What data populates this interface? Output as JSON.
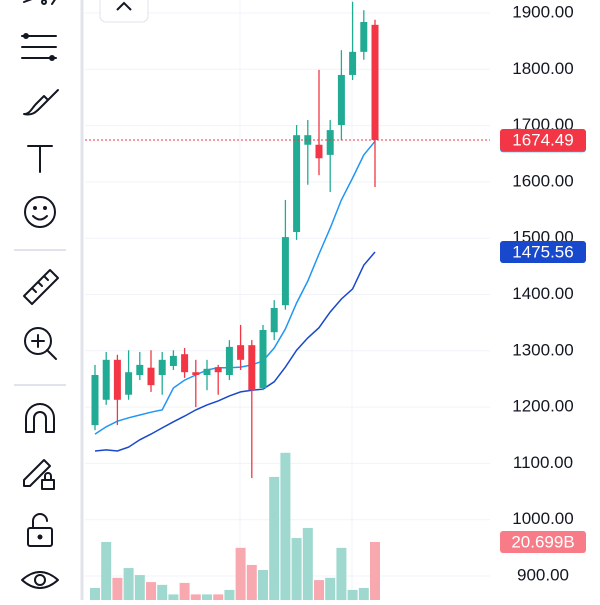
{
  "chart_data": {
    "type": "candlestick",
    "open": [
      1168,
      1213,
      1284,
      1222,
      1257,
      1270,
      1257,
      1273,
      1294,
      1262,
      1257,
      1271,
      1257,
      1310,
      1310,
      1234,
      1333,
      1381,
      1511,
      1666,
      1666,
      1648,
      1701,
      1790,
      1831,
      1879
    ],
    "high": [
      1275,
      1298,
      1293,
      1301,
      1298,
      1301,
      1298,
      1301,
      1305,
      1284,
      1284,
      1275,
      1319,
      1346,
      1319,
      1346,
      1390,
      1568,
      1701,
      1710,
      1799,
      1710,
      1834,
      1920,
      1905,
      1888
    ],
    "low": [
      1159,
      1204,
      1168,
      1213,
      1248,
      1227,
      1222,
      1266,
      1252,
      1200,
      1230,
      1222,
      1248,
      1266,
      1074,
      1230,
      1319,
      1373,
      1497,
      1595,
      1612,
      1582,
      1674,
      1781,
      1817,
      1591
    ],
    "close": [
      1257,
      1284,
      1213,
      1262,
      1275,
      1239,
      1284,
      1291,
      1262,
      1257,
      1268,
      1262,
      1307,
      1284,
      1230,
      1337,
      1376,
      1502,
      1683,
      1683,
      1642,
      1692,
      1790,
      1831,
      1884,
      1674.49
    ],
    "up_color": "#22ab94",
    "down_color": "#f23645",
    "volume": {
      "values": [
        4.3,
        20.7,
        7.9,
        11.4,
        8.9,
        6.4,
        5.4,
        2,
        6.1,
        2,
        2,
        2,
        3.6,
        18.6,
        12.5,
        10.7,
        43.9,
        52.5,
        22.1,
        25.7,
        7.1,
        7.9,
        18.6,
        3.6,
        4.3,
        20.699
      ],
      "value_labels": [
        null,
        null,
        null,
        null,
        null,
        null,
        null,
        null,
        null,
        null,
        null,
        null,
        null,
        null,
        null,
        null,
        null,
        null,
        null,
        null,
        null,
        null,
        null,
        null,
        null,
        "20.699B"
      ],
      "ylim": [
        0,
        214
      ],
      "up_color": "#9fd8cf",
      "down_color": "#f8a9b0",
      "tag_color": "#f77c88"
    },
    "ma": [
      {
        "color": "#2196f3",
        "values": [
          1152,
          1165,
          1175,
          1181,
          1186,
          1191,
          1195,
          1234,
          1248,
          1257,
          1266,
          1270,
          1270,
          1271,
          1275,
          1282,
          1305,
          1339,
          1385,
          1424,
          1472,
          1518,
          1568,
          1607,
          1648,
          1672.15
        ]
      },
      {
        "color": "#1848cc",
        "values": [
          1122,
          1124,
          1122,
          1129,
          1142,
          1152,
          1163,
          1174,
          1184,
          1195,
          1204,
          1211,
          1220,
          1227,
          1230,
          1232,
          1245,
          1271,
          1301,
          1323,
          1341,
          1369,
          1392,
          1410,
          1452,
          1475.56
        ]
      }
    ],
    "ylim": [
      857.4,
      1923.1
    ],
    "yticks": [
      {
        "value": 900,
        "label": "900.00"
      },
      {
        "value": 1000,
        "label": "1000.00"
      },
      {
        "value": 1100,
        "label": "1100.00"
      },
      {
        "value": 1200,
        "label": "1200.00"
      },
      {
        "value": 1300,
        "label": "1300.00"
      },
      {
        "value": 1400,
        "label": "1400.00"
      },
      {
        "value": 1500,
        "label": "1500.00"
      },
      {
        "value": 1600,
        "label": "1600.00"
      },
      {
        "value": 1700,
        "label": "1700.00"
      },
      {
        "value": 1800,
        "label": "1800.00"
      },
      {
        "value": 1900,
        "label": "1900.00"
      }
    ],
    "grid": true
  }
}
